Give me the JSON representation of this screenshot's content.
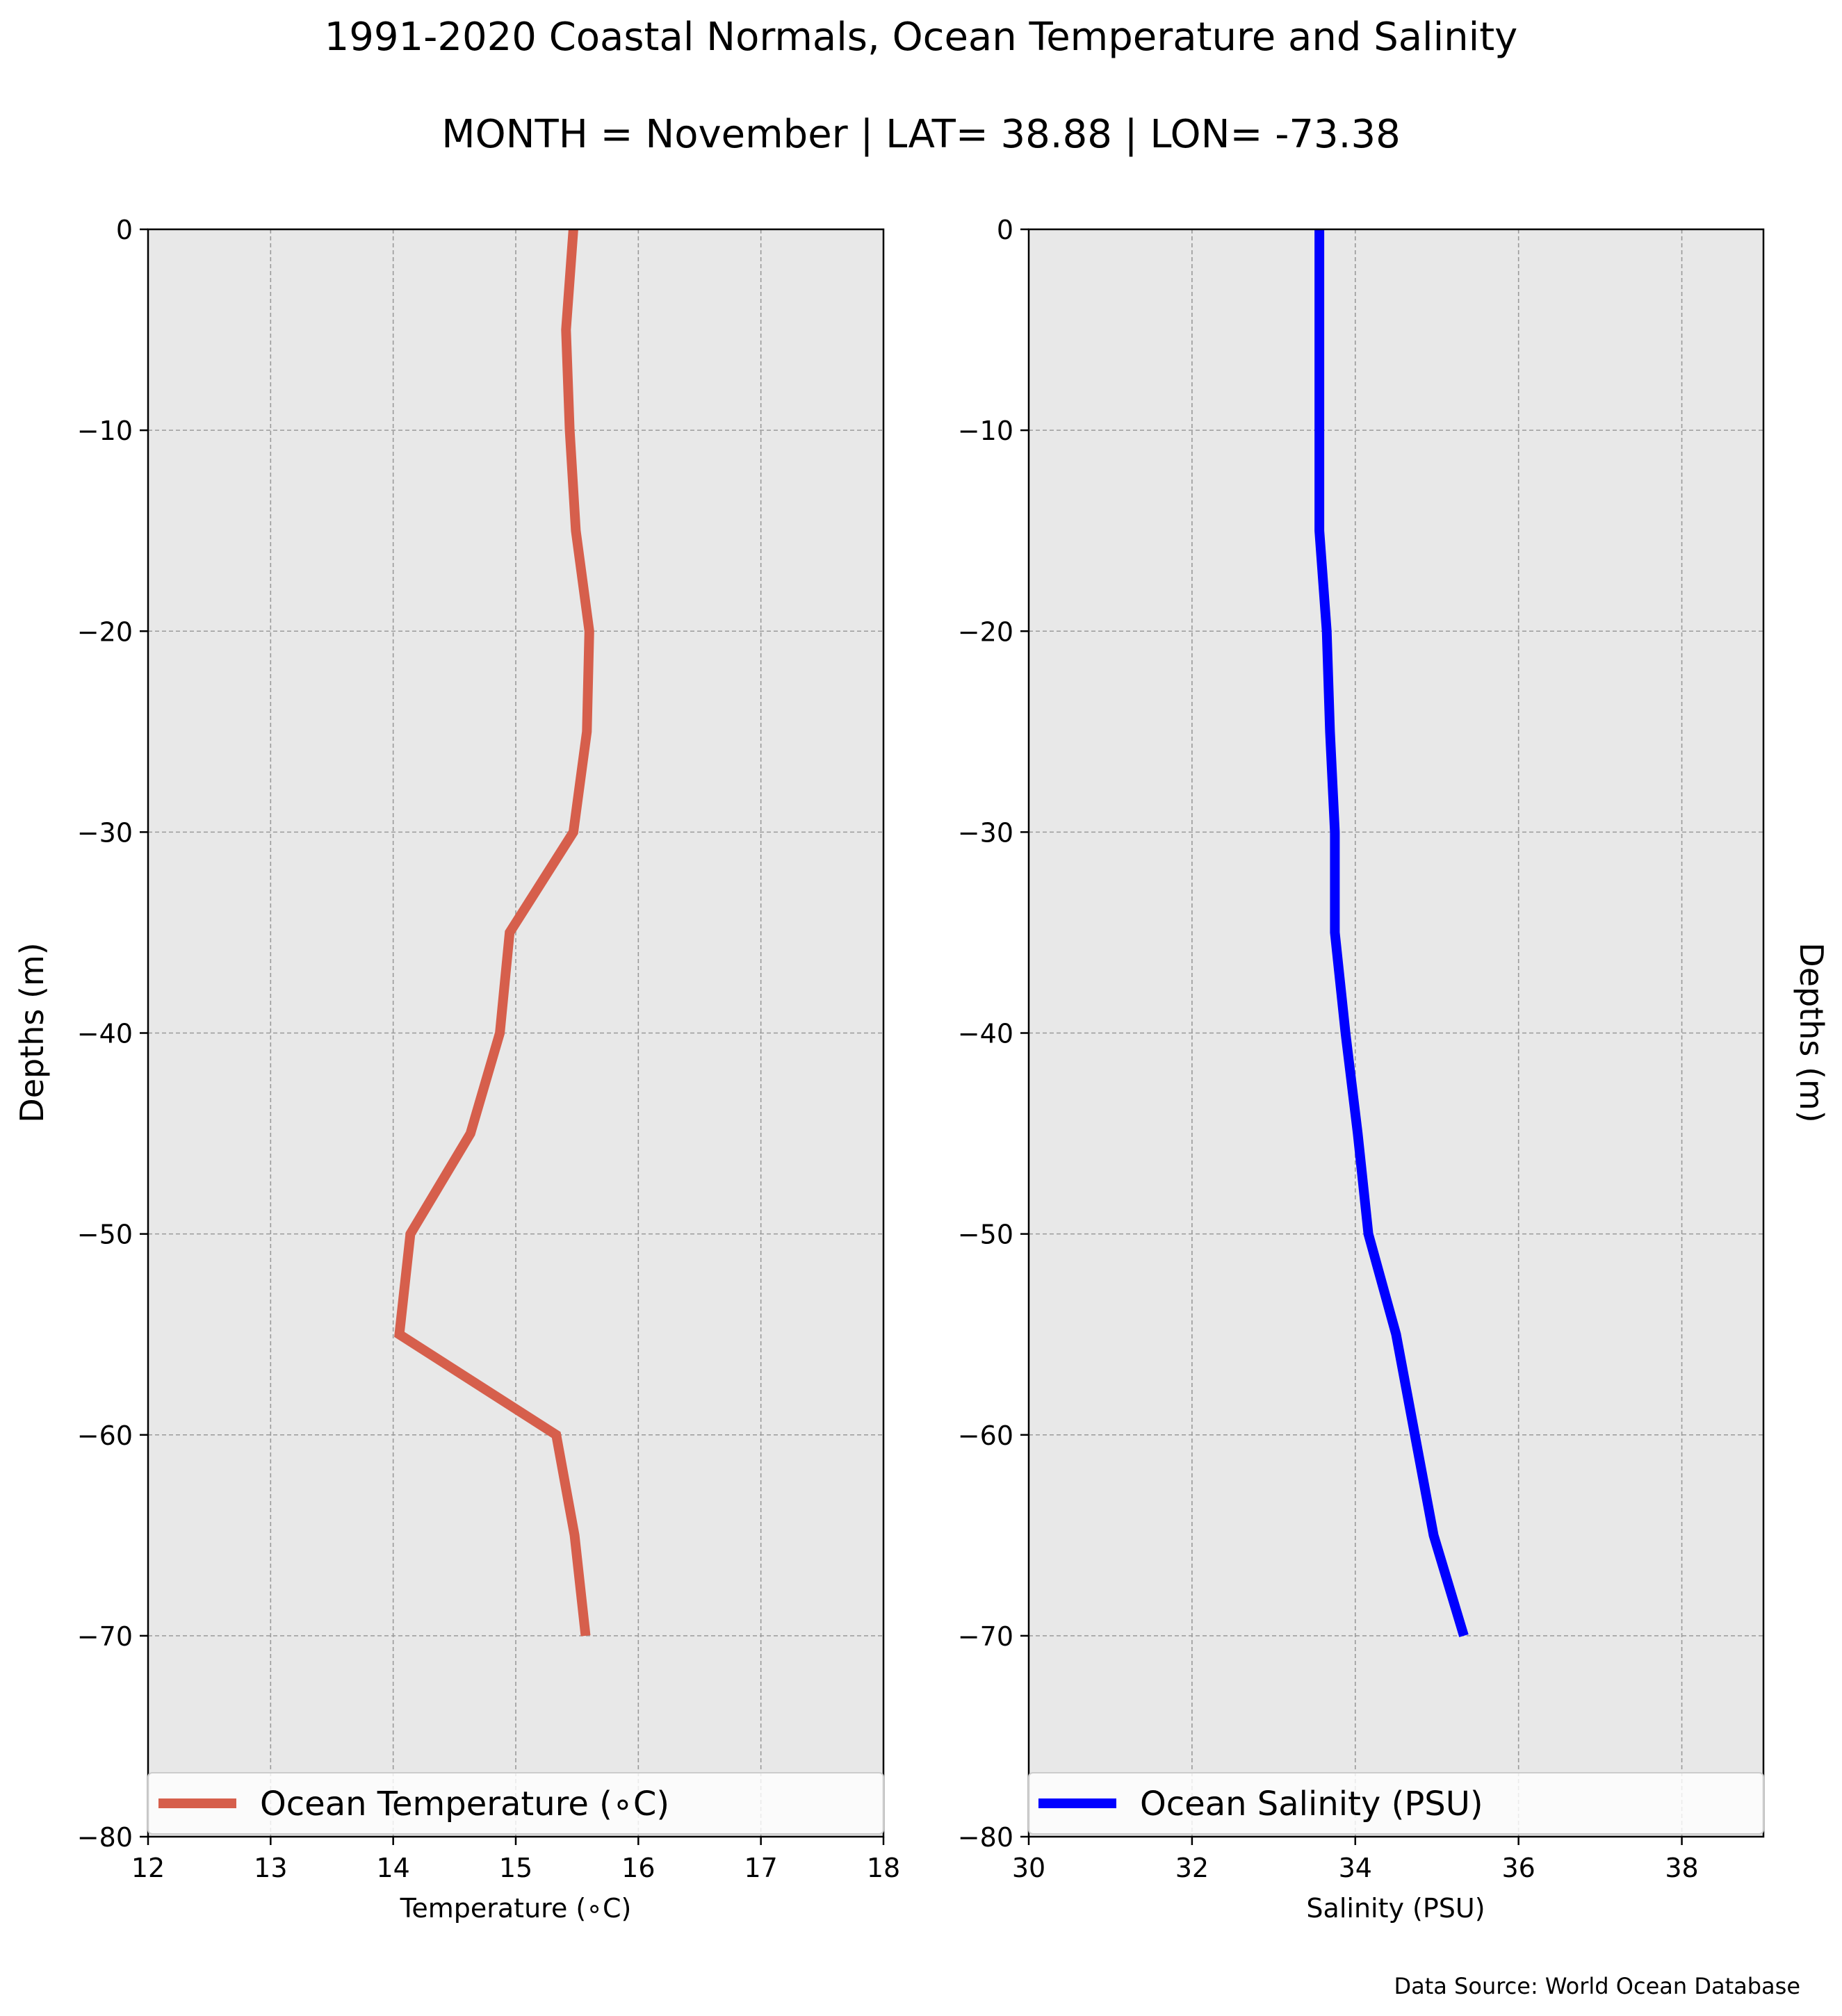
{
  "figure": {
    "title_line1": "1991-2020 Coastal Normals, Ocean Temperature and Salinity",
    "title_line2": "MONTH = November | LAT= 38.88 | LON= -73.38",
    "footnote": "Data Source: World Ocean Database"
  },
  "chart_data": [
    {
      "type": "line",
      "xlabel": "Temperature (∘C)",
      "ylabel": "Depths (m)",
      "xlim": [
        12,
        18
      ],
      "ylim": [
        -80,
        0
      ],
      "xticks": [
        12,
        13,
        14,
        15,
        16,
        17,
        18
      ],
      "yticks": [
        0,
        -10,
        -20,
        -30,
        -40,
        -50,
        -60,
        -70,
        -80
      ],
      "grid": true,
      "legend_position": "bottom",
      "series": [
        {
          "name": "Ocean Temperature (∘C)",
          "color": "#d65f4c",
          "x": [
            15.47,
            15.41,
            15.44,
            15.49,
            15.6,
            15.58,
            15.47,
            14.95,
            14.87,
            14.63,
            14.14,
            14.05,
            15.33,
            15.48,
            15.57
          ],
          "y": [
            0,
            -5,
            -10,
            -15,
            -20,
            -25,
            -30,
            -35,
            -40,
            -45,
            -50,
            -55,
            -60,
            -65,
            -70
          ]
        }
      ]
    },
    {
      "type": "line",
      "xlabel": "Salinity (PSU)",
      "ylabel": "Depths (m)",
      "xlim": [
        30,
        39
      ],
      "ylim": [
        -80,
        0
      ],
      "xticks": [
        30,
        32,
        34,
        36,
        38
      ],
      "yticks": [
        0,
        -10,
        -20,
        -30,
        -40,
        -50,
        -60,
        -70,
        -80
      ],
      "grid": true,
      "legend_position": "bottom",
      "series": [
        {
          "name": "Ocean Salinity (PSU)",
          "color": "#0000ff",
          "x": [
            33.56,
            33.56,
            33.56,
            33.56,
            33.65,
            33.69,
            33.75,
            33.75,
            33.88,
            34.03,
            34.16,
            34.5,
            34.73,
            34.96,
            35.33
          ],
          "y": [
            0,
            -5,
            -10,
            -15,
            -20,
            -25,
            -30,
            -35,
            -40,
            -45,
            -50,
            -55,
            -60,
            -65,
            -70
          ]
        }
      ]
    }
  ]
}
